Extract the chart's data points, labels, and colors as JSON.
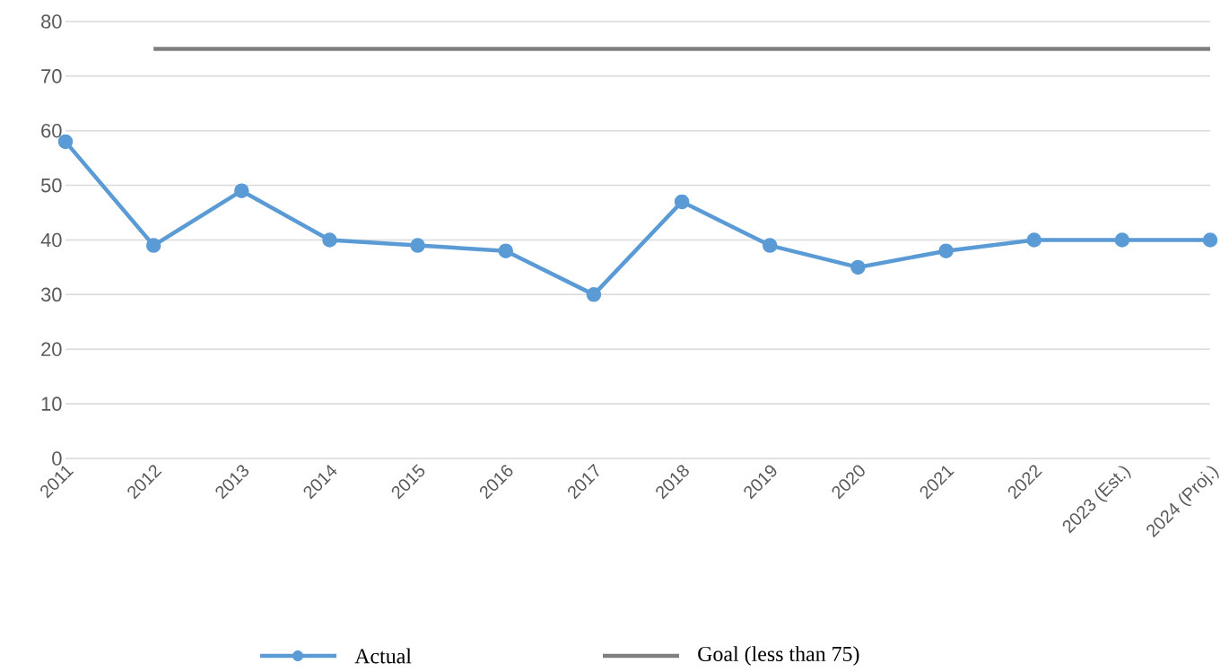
{
  "chart_data": {
    "type": "line",
    "categories": [
      "2011",
      "2012",
      "2013",
      "2014",
      "2015",
      "2016",
      "2017",
      "2018",
      "2019",
      "2020",
      "2021",
      "2022",
      "2023 (Est.)",
      "2024 (Proj.)"
    ],
    "series": [
      {
        "name": "Actual",
        "color": "#5b9bd5",
        "values": [
          58,
          39,
          49,
          40,
          39,
          38,
          30,
          47,
          39,
          35,
          38,
          40,
          40,
          40
        ]
      },
      {
        "name": "Goal (less than 75)",
        "color": "#7f7f7f",
        "marker": "none",
        "values": [
          null,
          75,
          75,
          75,
          75,
          75,
          75,
          75,
          75,
          75,
          75,
          75,
          75,
          75
        ]
      }
    ],
    "ylim": [
      0,
      80
    ],
    "yticks": [
      0,
      10,
      20,
      30,
      40,
      50,
      60,
      70,
      80
    ],
    "grid": "y",
    "legend": "bottom",
    "marker": "circle"
  }
}
